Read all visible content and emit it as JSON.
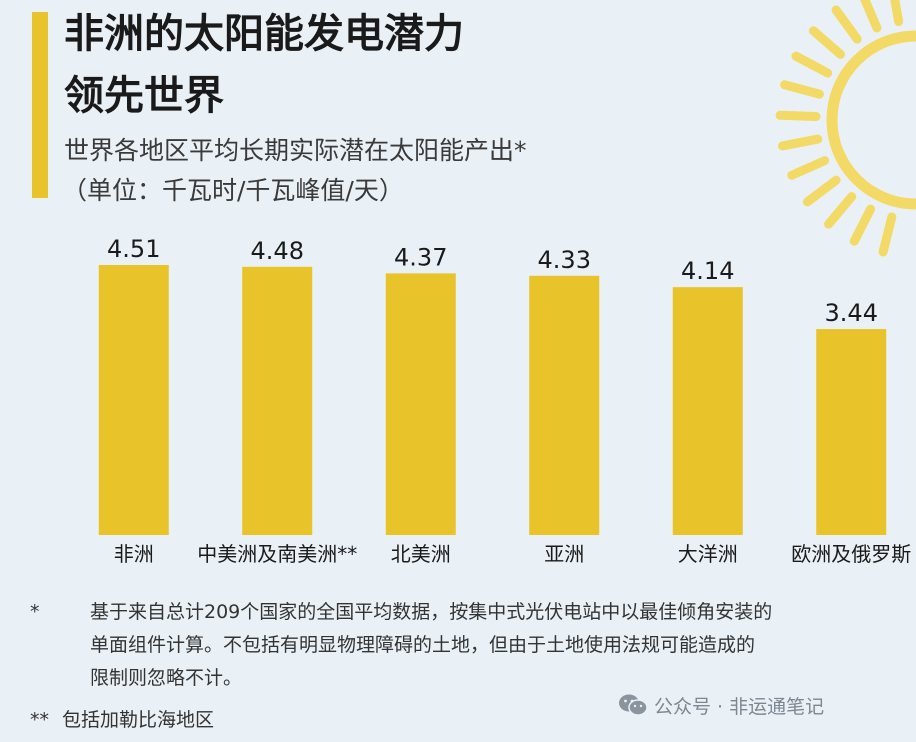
{
  "title": {
    "line1": "非洲的太阳能发电潜力",
    "line2": "领先世界"
  },
  "subtitle": "世界各地区平均长期实际潜在太阳能产出*",
  "unit": "（单位：千瓦时/千瓦峰值/天）",
  "colors": {
    "bar": "#e9c32a",
    "accent": "#e9c32a",
    "sun": "#f3d966",
    "background": "#eaf1f6"
  },
  "chart_data": {
    "type": "bar",
    "categories": [
      "非洲",
      "中美洲及南美洲**",
      "北美洲",
      "亚洲",
      "大洋洲",
      "欧洲及俄罗斯"
    ],
    "values": [
      4.51,
      4.48,
      4.37,
      4.33,
      4.14,
      3.44
    ],
    "value_labels": [
      "4.51",
      "4.48",
      "4.37",
      "4.33",
      "4.14",
      "3.44"
    ],
    "ylim": [
      0,
      4.51
    ],
    "grid": false,
    "legend": "none"
  },
  "notes": {
    "mark1": "*",
    "line1": "基于来自总计209个国家的全国平均数据，按集中式光伏电站中以最佳倾角安装的",
    "line2": "单面组件计算。不包括有明显物理障碍的土地，但由于土地使用法规可能造成的",
    "line3": "限制则忽略不计。",
    "mark2": "**",
    "text2": "包括加勒比海地区"
  },
  "watermark": {
    "icon": "wechat-icon",
    "text": "公众号 · 非运通笔记"
  }
}
